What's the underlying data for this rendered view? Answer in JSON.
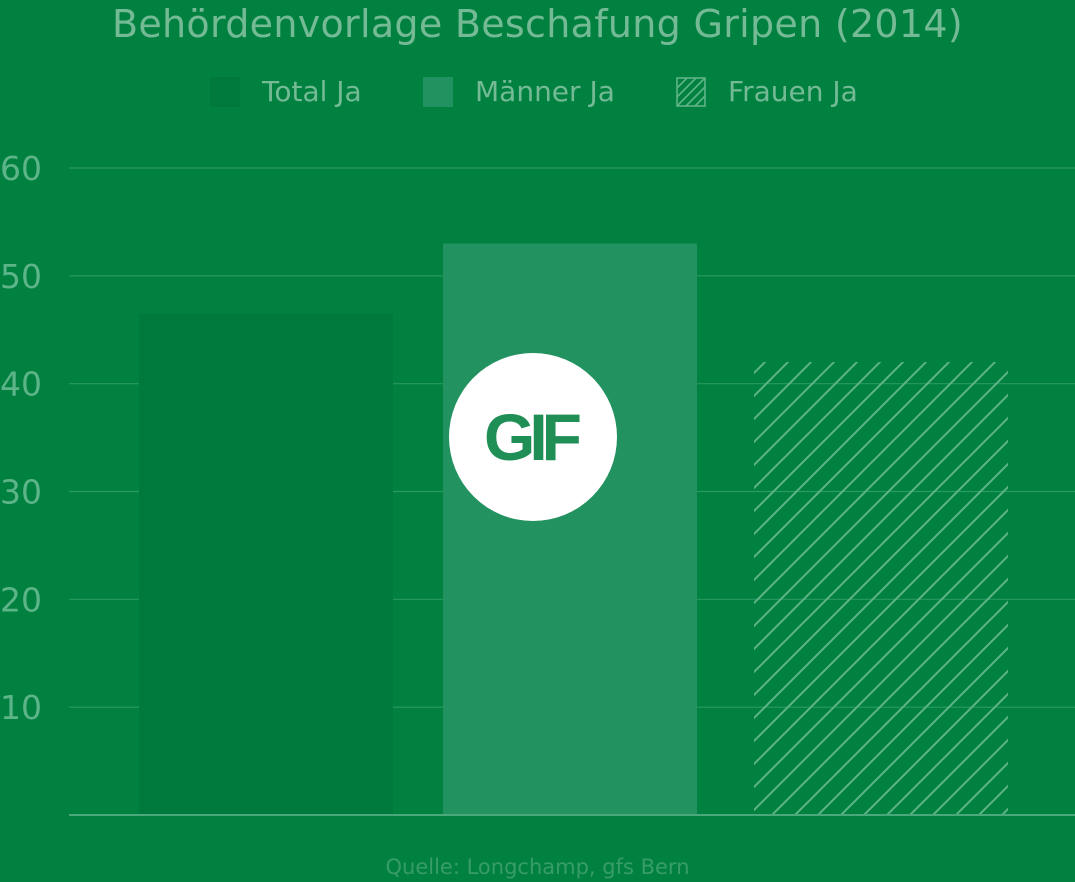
{
  "chart_data": {
    "type": "bar",
    "title": "Behördenvorlage Beschafung Gripen (2014)",
    "categories": [
      "Total Ja",
      "Männer Ja",
      "Frauen Ja"
    ],
    "values": [
      46.5,
      53,
      42
    ],
    "ylim": [
      0,
      60
    ],
    "yticks": [
      10,
      20,
      30,
      40,
      50,
      60
    ],
    "grid": true,
    "legend_position": "top-center",
    "series": [
      {
        "name": "Total Ja",
        "value": 46.5,
        "color": "#007a3c",
        "pattern": "solid"
      },
      {
        "name": "Männer Ja",
        "value": 53,
        "color": "#219260",
        "pattern": "solid"
      },
      {
        "name": "Frauen Ja",
        "value": 42,
        "color": "#5fb487",
        "pattern": "hatched"
      }
    ],
    "source": "Quelle: Longchamp, gfs Bern"
  },
  "overlay": {
    "badge_label": "GIF"
  },
  "colors": {
    "background": "#00813f",
    "gridline": "#2a9a62",
    "axis": "#4aa87a",
    "tick_text": "#5cb488"
  }
}
